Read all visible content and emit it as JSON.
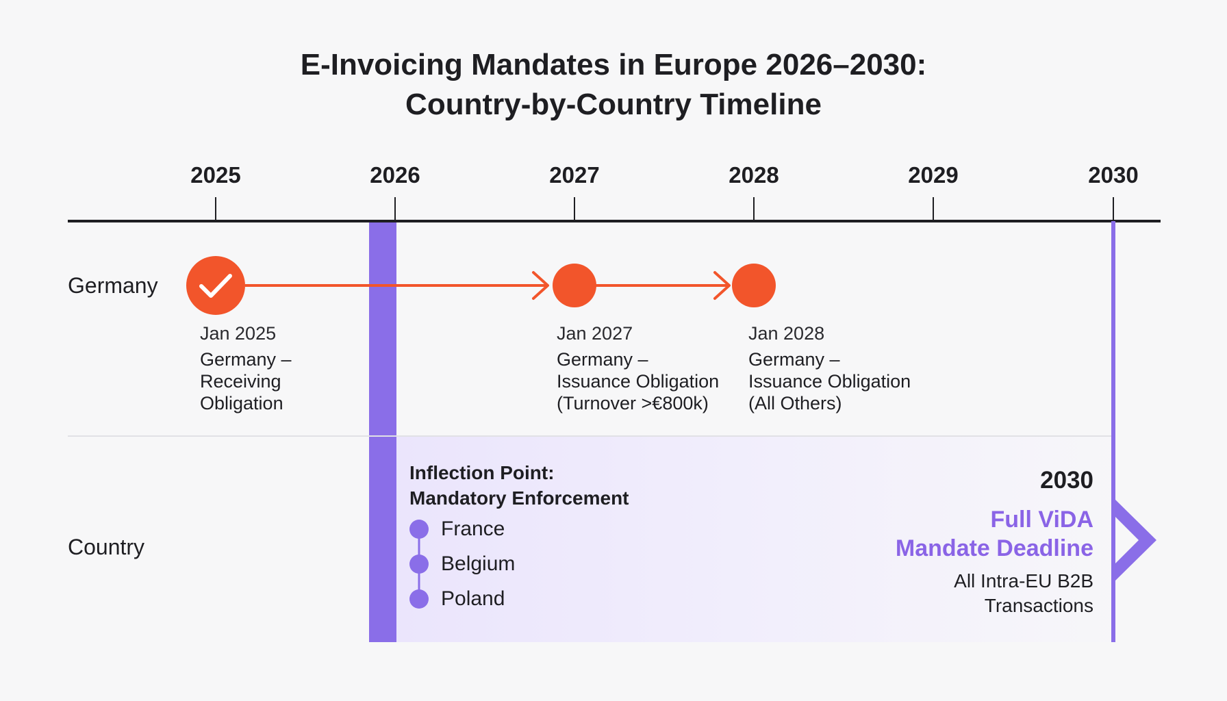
{
  "title": {
    "line1": "E-Invoicing Mandates in Europe 2026–2030:",
    "line2": "Country-by-Country Timeline"
  },
  "years": [
    "2025",
    "2026",
    "2027",
    "2028",
    "2029",
    "2030"
  ],
  "rows": {
    "germany": "Germany",
    "country": "Country"
  },
  "germany_events": [
    {
      "date": "Jan 2025",
      "line1": "Germany –",
      "line2": "Receiving",
      "line3": "Obligation",
      "status": "completed"
    },
    {
      "date": "Jan 2027",
      "line1": "Germany –",
      "line2": "Issuance Obligation",
      "line3": "(Turnover >€800k)",
      "status": "upcoming"
    },
    {
      "date": "Jan 2028",
      "line1": "Germany –",
      "line2": "Issuance Obligation",
      "line3": "(All Others)",
      "status": "upcoming"
    }
  ],
  "inflection": {
    "title_line1": "Inflection Point:",
    "title_line2": "Mandatory Enforcement",
    "countries": [
      "France",
      "Belgium",
      "Poland"
    ]
  },
  "deadline": {
    "year": "2030",
    "title_line1": "Full ViDA",
    "title_line2": "Mandate Deadline",
    "sub_line1": "All Intra-EU B2B",
    "sub_line2": "Transactions"
  },
  "colors": {
    "germany_accent": "#f2552b",
    "inflection_accent": "#8a6ee8",
    "deadline_text": "#8a64e6",
    "axis": "#1e1e22"
  }
}
